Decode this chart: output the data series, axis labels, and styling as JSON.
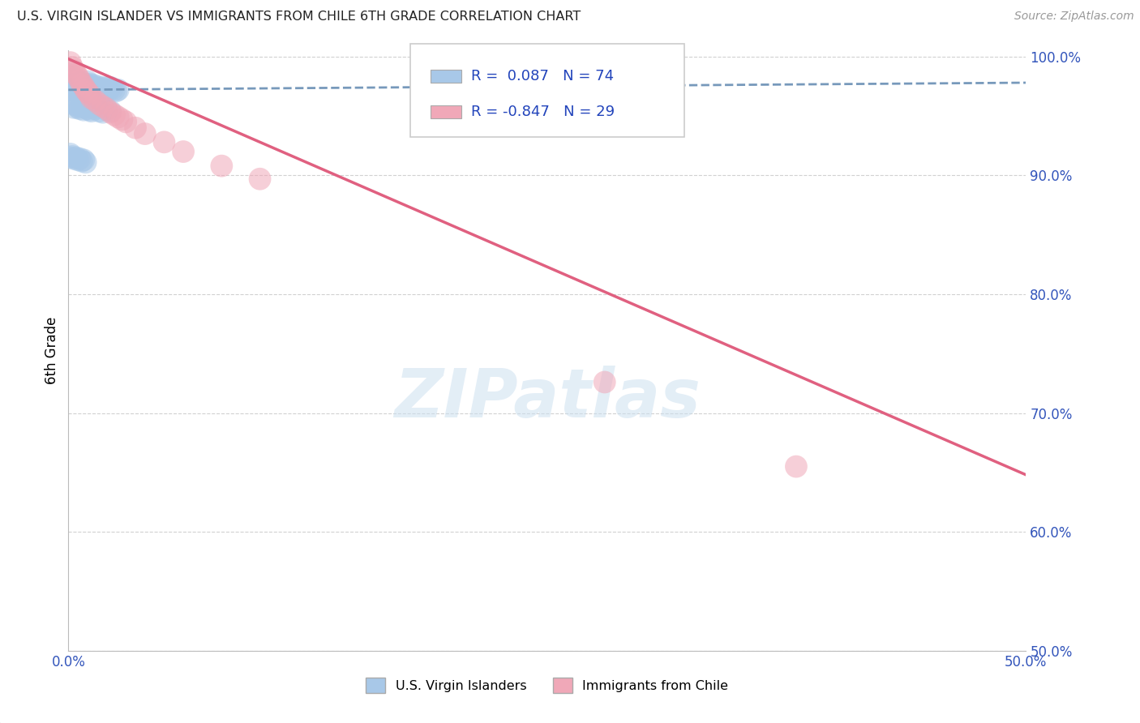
{
  "title": "U.S. VIRGIN ISLANDER VS IMMIGRANTS FROM CHILE 6TH GRADE CORRELATION CHART",
  "source": "Source: ZipAtlas.com",
  "ylabel": "6th Grade",
  "watermark": "ZIPatlas",
  "xlim": [
    0.0,
    0.5
  ],
  "ylim": [
    0.5,
    1.005
  ],
  "xticks": [
    0.0,
    0.1,
    0.2,
    0.3,
    0.4,
    0.5
  ],
  "yticks": [
    0.5,
    0.6,
    0.7,
    0.8,
    0.9,
    1.0
  ],
  "legend_labels": [
    "U.S. Virgin Islanders",
    "Immigrants from Chile"
  ],
  "blue_color": "#a8c8e8",
  "pink_color": "#f0a8b8",
  "blue_line_color": "#7799bb",
  "pink_line_color": "#e06080",
  "R_blue": 0.087,
  "N_blue": 74,
  "R_pink": -0.847,
  "N_pink": 29,
  "blue_scatter_x": [
    0.001,
    0.001,
    0.001,
    0.001,
    0.001,
    0.001,
    0.002,
    0.002,
    0.003,
    0.003,
    0.004,
    0.004,
    0.004,
    0.005,
    0.005,
    0.005,
    0.006,
    0.006,
    0.006,
    0.007,
    0.007,
    0.008,
    0.008,
    0.009,
    0.009,
    0.01,
    0.01,
    0.01,
    0.011,
    0.011,
    0.012,
    0.012,
    0.013,
    0.013,
    0.014,
    0.015,
    0.015,
    0.016,
    0.017,
    0.018,
    0.019,
    0.02,
    0.021,
    0.022,
    0.023,
    0.024,
    0.025,
    0.026,
    0.003,
    0.003,
    0.004,
    0.005,
    0.006,
    0.007,
    0.008,
    0.009,
    0.01,
    0.011,
    0.012,
    0.014,
    0.016,
    0.018,
    0.02,
    0.022,
    0.001,
    0.001,
    0.002,
    0.003,
    0.004,
    0.005,
    0.006,
    0.007,
    0.008,
    0.009
  ],
  "blue_scatter_y": [
    0.985,
    0.982,
    0.979,
    0.977,
    0.974,
    0.972,
    0.98,
    0.976,
    0.978,
    0.975,
    0.977,
    0.974,
    0.971,
    0.98,
    0.976,
    0.973,
    0.978,
    0.975,
    0.971,
    0.976,
    0.972,
    0.974,
    0.971,
    0.977,
    0.973,
    0.979,
    0.975,
    0.972,
    0.977,
    0.973,
    0.975,
    0.972,
    0.976,
    0.972,
    0.974,
    0.975,
    0.972,
    0.973,
    0.974,
    0.972,
    0.971,
    0.974,
    0.972,
    0.974,
    0.973,
    0.972,
    0.971,
    0.972,
    0.96,
    0.957,
    0.959,
    0.957,
    0.956,
    0.958,
    0.955,
    0.957,
    0.956,
    0.955,
    0.954,
    0.956,
    0.954,
    0.953,
    0.955,
    0.954,
    0.918,
    0.915,
    0.916,
    0.914,
    0.915,
    0.913,
    0.914,
    0.912,
    0.913,
    0.911
  ],
  "pink_scatter_x": [
    0.001,
    0.002,
    0.003,
    0.004,
    0.005,
    0.006,
    0.007,
    0.008,
    0.009,
    0.01,
    0.011,
    0.012,
    0.014,
    0.016,
    0.018,
    0.02,
    0.022,
    0.024,
    0.026,
    0.028,
    0.03,
    0.035,
    0.04,
    0.05,
    0.06,
    0.08,
    0.1,
    0.38,
    0.28
  ],
  "pink_scatter_y": [
    0.995,
    0.991,
    0.988,
    0.985,
    0.983,
    0.98,
    0.977,
    0.975,
    0.972,
    0.97,
    0.968,
    0.965,
    0.963,
    0.96,
    0.958,
    0.956,
    0.953,
    0.951,
    0.949,
    0.947,
    0.945,
    0.94,
    0.935,
    0.928,
    0.92,
    0.908,
    0.897,
    0.655,
    0.726
  ],
  "blue_trend_x": [
    0.0,
    0.5
  ],
  "blue_trend_y": [
    0.972,
    0.978
  ],
  "pink_trend_x": [
    0.0,
    0.5
  ],
  "pink_trend_y": [
    0.998,
    0.648
  ],
  "grid_color": "#cccccc",
  "background_color": "#ffffff"
}
